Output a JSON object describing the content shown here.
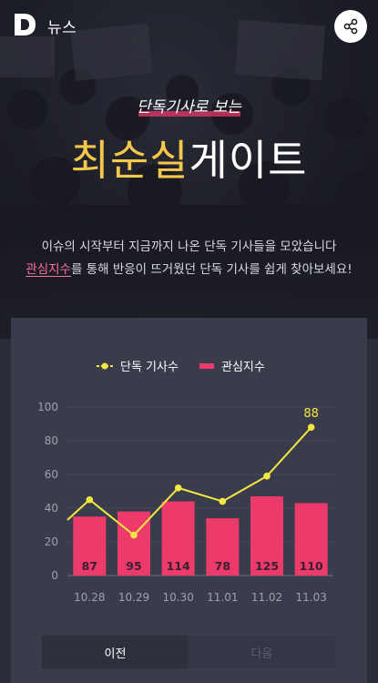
{
  "header": {
    "logo_letter": "D",
    "section_title": "뉴스"
  },
  "hero": {
    "kicker": "단독기사로 보는",
    "title_name": "최순실",
    "title_rest": "게이트",
    "intro_line1": "이슈의 시작부터 지금까지 나온 단독 기사들을 모았습니다",
    "intro_highlight": "관심지수",
    "intro_line2_rest": "를 통해 반응이 뜨거웠던 단독 기사를 쉽게 찾아보세요!"
  },
  "colors": {
    "line": "#f5e642",
    "bar": "#ec3a6b",
    "title_name": "#f5c84a",
    "highlight": "#ff6fa0"
  },
  "chart_data": {
    "type": "bar",
    "categories": [
      "10.28",
      "10.29",
      "10.30",
      "11.01",
      "11.02",
      "11.03"
    ],
    "ylim": [
      0,
      100
    ],
    "yticks": [
      0,
      20,
      40,
      60,
      80,
      100
    ],
    "series": [
      {
        "name": "단독 기사수",
        "type": "line",
        "values": [
          45,
          24,
          52,
          44,
          59,
          88
        ],
        "lead_in": 33,
        "labeled_value": 88
      },
      {
        "name": "관심지수",
        "type": "bar",
        "values": [
          35,
          38,
          44,
          34,
          47,
          43
        ],
        "labels": [
          "87",
          "95",
          "114",
          "78",
          "125",
          "110"
        ]
      }
    ],
    "legend": [
      "단독 기사수",
      "관심지수"
    ],
    "legend_position": "top",
    "grid": true
  },
  "nav": {
    "prev_label": "이전",
    "next_label": "다음"
  }
}
